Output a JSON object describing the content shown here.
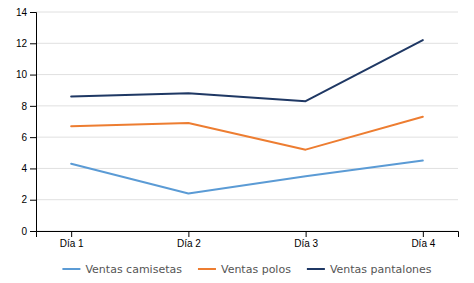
{
  "chart_data": {
    "type": "line",
    "categories": [
      "Día 1",
      "Día 2",
      "Día 3",
      "Día 4"
    ],
    "series": [
      {
        "name": "Ventas camisetas",
        "color": "#5b9bd5",
        "values": [
          4.3,
          2.4,
          3.5,
          4.5
        ]
      },
      {
        "name": "Ventas polos",
        "color": "#ed7d31",
        "values": [
          6.7,
          6.9,
          5.2,
          7.3
        ]
      },
      {
        "name": "Ventas pantalones",
        "color": "#1f3864",
        "values": [
          8.6,
          8.8,
          8.3,
          12.2
        ]
      }
    ],
    "ylim": [
      0,
      14
    ],
    "yticks": [
      0,
      2,
      4,
      6,
      8,
      10,
      12,
      14
    ],
    "grid": true,
    "legend": "bottom"
  }
}
